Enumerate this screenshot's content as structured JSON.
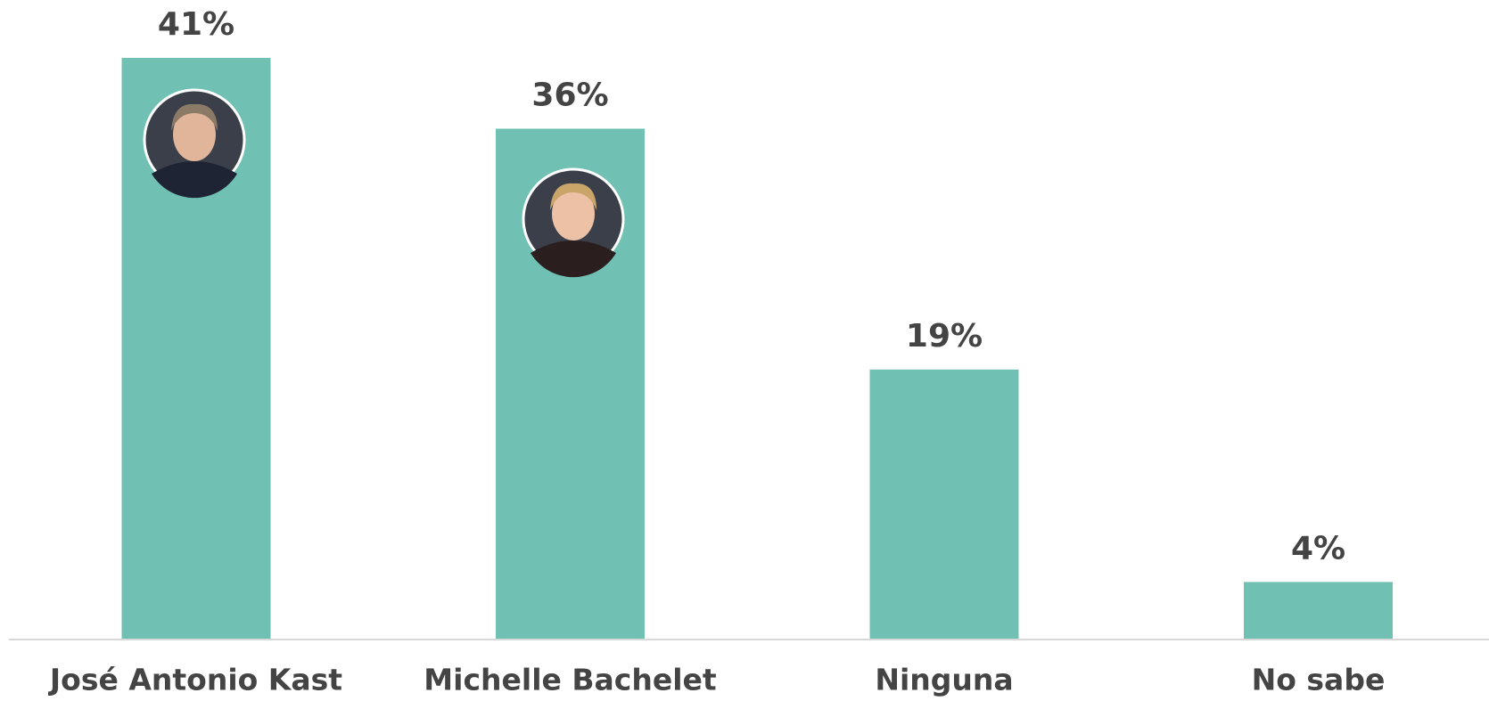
{
  "chart_data": {
    "type": "bar",
    "categories": [
      "José Antonio Kast",
      "Michelle Bachelet",
      "Ninguna",
      "No sabe"
    ],
    "values": [
      41,
      36,
      19,
      4
    ],
    "value_labels": [
      "41%",
      "36%",
      "19%",
      "4%"
    ],
    "color": "#70c0b3"
  }
}
